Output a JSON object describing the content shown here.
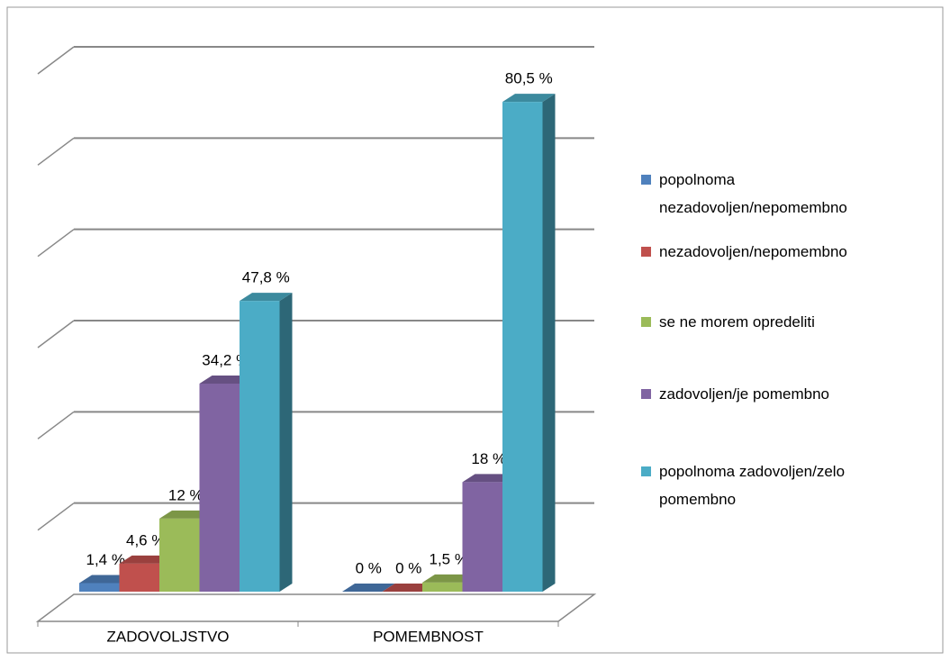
{
  "chart_data": {
    "type": "bar3d",
    "categories": [
      "ZADOVOLJSTVO",
      "POMEMBNOST"
    ],
    "series": [
      {
        "name": "popolnoma nezadovoljen/nepomembno",
        "color": "#4f81bd",
        "values": [
          1.4,
          0
        ],
        "value_labels": [
          "1,4 %",
          "0 %"
        ]
      },
      {
        "name": "nezadovoljen/nepomembno",
        "color": "#c0504d",
        "values": [
          4.6,
          0
        ],
        "value_labels": [
          "4,6 %",
          "0 %"
        ]
      },
      {
        "name": "se ne morem opredeliti",
        "color": "#9bbb59",
        "values": [
          12,
          1.5
        ],
        "value_labels": [
          "12 %",
          "1,5 %"
        ]
      },
      {
        "name": "zadovoljen/je pomembno",
        "color": "#8064a2",
        "values": [
          34.2,
          18
        ],
        "value_labels": [
          "34,2 %",
          "18 %"
        ]
      },
      {
        "name": "popolnoma zadovoljen/zelo pomembno",
        "color": "#4bacc6",
        "values": [
          47.8,
          80.5
        ],
        "value_labels": [
          "47,8 %",
          "80,5 %"
        ]
      }
    ],
    "ylim": [
      0,
      90
    ],
    "yticks": [
      0,
      15,
      30,
      45,
      60,
      75,
      90
    ],
    "grid": true,
    "legend": "right"
  }
}
